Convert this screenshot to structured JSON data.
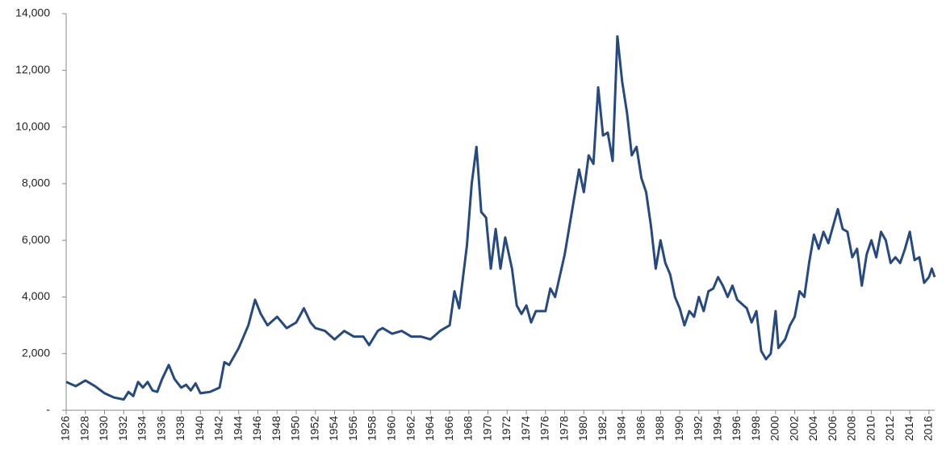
{
  "chart_data": {
    "type": "line",
    "x": [
      1926,
      1927,
      1928,
      1929,
      1930,
      1931,
      1932,
      1932.5,
      1933,
      1933.5,
      1934,
      1934.5,
      1935,
      1935.5,
      1936,
      1936.7,
      1937.3,
      1938,
      1938.5,
      1939,
      1939.5,
      1940,
      1941,
      1942,
      1942.5,
      1943,
      1944,
      1945,
      1945.7,
      1946.3,
      1947,
      1948,
      1949,
      1950,
      1950.8,
      1951.5,
      1952,
      1953,
      1954,
      1955,
      1956,
      1957,
      1957.6,
      1958.5,
      1959,
      1960,
      1961,
      1962,
      1963,
      1964,
      1965,
      1966,
      1966.5,
      1967,
      1967.8,
      1968.3,
      1968.8,
      1969.3,
      1969.8,
      1970.3,
      1970.8,
      1971.3,
      1971.8,
      1972.5,
      1973,
      1973.5,
      1974,
      1974.5,
      1975,
      1976,
      1976.5,
      1977,
      1978,
      1979,
      1979.5,
      1980,
      1980.5,
      1981,
      1981.5,
      1982,
      1982.5,
      1983,
      1983.5,
      1984,
      1984.5,
      1985,
      1985.5,
      1986,
      1986.5,
      1987,
      1987.5,
      1988,
      1988.5,
      1989,
      1989.5,
      1990,
      1990.5,
      1991,
      1991.5,
      1992,
      1992.5,
      1993,
      1993.5,
      1994,
      1994.5,
      1995,
      1995.5,
      1996,
      1997,
      1997.5,
      1998,
      1998.5,
      1999,
      1999.5,
      2000,
      2000.3,
      2001,
      2001.5,
      2002,
      2002.5,
      2003,
      2003.5,
      2004,
      2004.5,
      2005,
      2005.5,
      2006,
      2006.5,
      2007,
      2007.5,
      2008,
      2008.5,
      2009,
      2009.5,
      2010,
      2010.5,
      2011,
      2011.5,
      2012,
      2012.5,
      2013,
      2013.5,
      2014,
      2014.5,
      2015,
      2015.5,
      2016,
      2016.3,
      2016.6
    ],
    "series": [
      {
        "color": "#264a7f",
        "values": [
          1000,
          850,
          1050,
          850,
          600,
          450,
          380,
          650,
          500,
          1000,
          800,
          1000,
          700,
          650,
          1100,
          1600,
          1100,
          800,
          900,
          700,
          950,
          600,
          650,
          800,
          1700,
          1600,
          2200,
          3000,
          3900,
          3400,
          3000,
          3300,
          2900,
          3100,
          3600,
          3100,
          2900,
          2800,
          2500,
          2800,
          2600,
          2600,
          2300,
          2800,
          2900,
          2700,
          2800,
          2600,
          2600,
          2500,
          2800,
          3000,
          4200,
          3600,
          5800,
          8000,
          9300,
          7000,
          6800,
          5000,
          6400,
          5000,
          6100,
          5000,
          3700,
          3400,
          3700,
          3100,
          3500,
          3500,
          4300,
          4000,
          5500,
          7500,
          8500,
          7700,
          9000,
          8700,
          11400,
          9700,
          9800,
          8800,
          13200,
          11600,
          10500,
          9000,
          9300,
          8200,
          7700,
          6500,
          5000,
          6000,
          5200,
          4800,
          4000,
          3600,
          3000,
          3500,
          3300,
          4000,
          3500,
          4200,
          4300,
          4700,
          4400,
          4000,
          4400,
          3900,
          3600,
          3100,
          3500,
          2100,
          1800,
          2000,
          3500,
          2200,
          2500,
          3000,
          3300,
          4200,
          4000,
          5200,
          6200,
          5700,
          6300,
          5900,
          6500,
          7100,
          6400,
          6300,
          5400,
          5700,
          4400,
          5500,
          6000,
          5400,
          6300,
          6000,
          5200,
          5400,
          5200,
          5700,
          6300,
          5300,
          5400,
          4500,
          4700,
          5000,
          4700
        ]
      }
    ],
    "xlim": [
      1926,
      2016.6
    ],
    "xticks": [
      1926,
      1928,
      1930,
      1932,
      1934,
      1936,
      1938,
      1940,
      1942,
      1944,
      1946,
      1948,
      1950,
      1952,
      1954,
      1956,
      1958,
      1960,
      1962,
      1964,
      1966,
      1968,
      1970,
      1972,
      1974,
      1976,
      1978,
      1980,
      1982,
      1984,
      1986,
      1988,
      1990,
      1992,
      1994,
      1996,
      1998,
      2000,
      2002,
      2004,
      2006,
      2008,
      2010,
      2012,
      2014,
      2016
    ],
    "ylim": [
      0,
      14000
    ],
    "yticks": [
      {
        "value": 0,
        "label": "-"
      },
      {
        "value": 2000,
        "label": "2,000"
      },
      {
        "value": 4000,
        "label": "4,000"
      },
      {
        "value": 6000,
        "label": "6,000"
      },
      {
        "value": 8000,
        "label": "8,000"
      },
      {
        "value": 10000,
        "label": "10,000"
      },
      {
        "value": 12000,
        "label": "12,000"
      },
      {
        "value": 14000,
        "label": "14,000"
      }
    ]
  }
}
